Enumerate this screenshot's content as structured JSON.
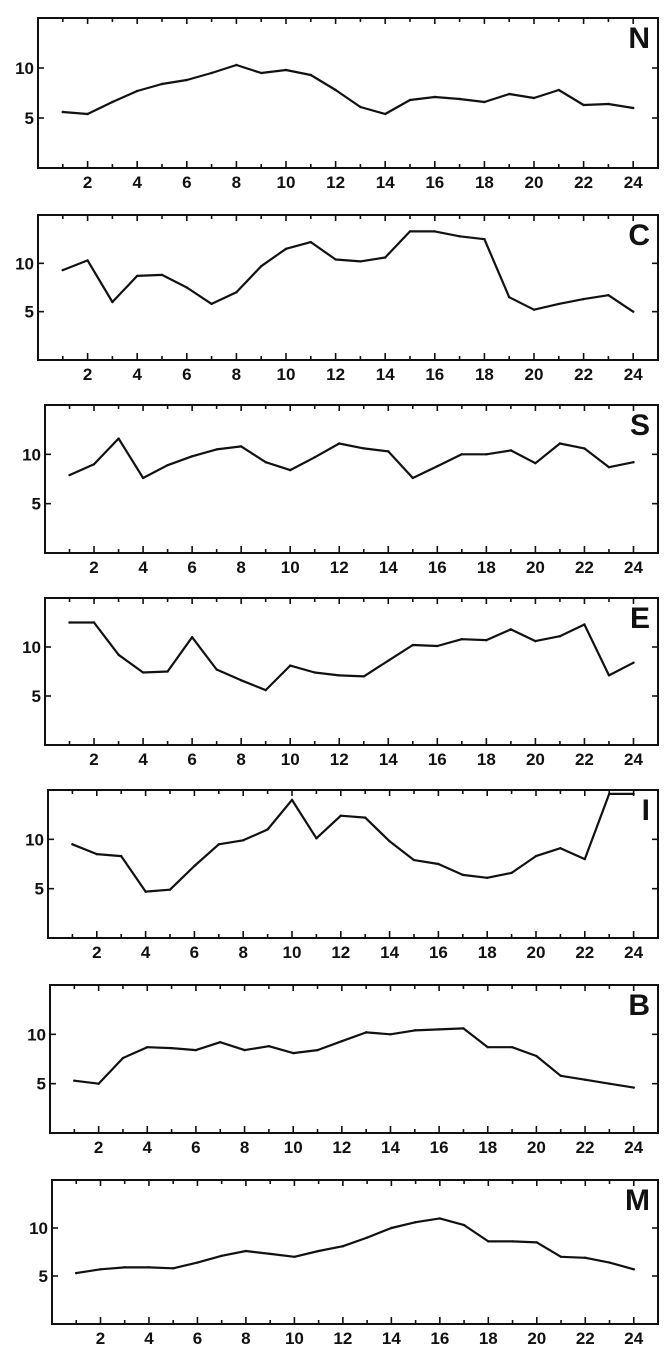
{
  "chart_data": [
    {
      "type": "line",
      "title": "N",
      "x": [
        1,
        2,
        3,
        4,
        5,
        6,
        7,
        8,
        9,
        10,
        11,
        12,
        13,
        14,
        15,
        16,
        17,
        18,
        19,
        20,
        21,
        22,
        23,
        24
      ],
      "series": [
        {
          "values": [
            5.6,
            5.4,
            6.6,
            7.7,
            8.4,
            8.8,
            9.5,
            10.3,
            9.5,
            9.8,
            9.3,
            7.8,
            6.1,
            5.4,
            6.8,
            7.1,
            6.9,
            6.6,
            7.4,
            7.0,
            7.8,
            6.3,
            6.4,
            6.0
          ]
        }
      ],
      "xticks": [
        2,
        4,
        6,
        8,
        10,
        12,
        14,
        16,
        18,
        20,
        22,
        24
      ],
      "yticks": [
        5,
        10
      ],
      "xlim": [
        0,
        25
      ],
      "ylim": [
        0,
        15
      ]
    },
    {
      "type": "line",
      "title": "C",
      "x": [
        1,
        2,
        3,
        4,
        5,
        6,
        7,
        8,
        9,
        10,
        11,
        12,
        13,
        14,
        15,
        16,
        17,
        18,
        19,
        20,
        21,
        22,
        23,
        24
      ],
      "series": [
        {
          "values": [
            9.3,
            10.3,
            6.0,
            8.7,
            8.8,
            7.5,
            5.8,
            7.0,
            9.7,
            11.5,
            12.2,
            10.4,
            10.2,
            10.6,
            13.3,
            13.3,
            12.8,
            12.5,
            6.5,
            5.2,
            5.8,
            6.3,
            6.7,
            5.0
          ]
        }
      ],
      "xticks": [
        2,
        4,
        6,
        8,
        10,
        12,
        14,
        16,
        18,
        20,
        22,
        24
      ],
      "yticks": [
        5,
        10
      ],
      "xlim": [
        0,
        25
      ],
      "ylim": [
        0,
        15
      ]
    },
    {
      "type": "line",
      "title": "S",
      "x": [
        1,
        2,
        3,
        4,
        5,
        6,
        7,
        8,
        9,
        10,
        11,
        12,
        13,
        14,
        15,
        16,
        17,
        18,
        19,
        20,
        21,
        22,
        23,
        24
      ],
      "series": [
        {
          "values": [
            7.9,
            9.0,
            11.6,
            7.6,
            8.9,
            9.8,
            10.5,
            10.8,
            9.2,
            8.4,
            9.7,
            11.1,
            10.6,
            10.3,
            7.6,
            8.8,
            10.0,
            10.0,
            10.4,
            9.1,
            11.1,
            10.6,
            8.7,
            9.2
          ]
        }
      ],
      "xticks": [
        2,
        4,
        6,
        8,
        10,
        12,
        14,
        16,
        18,
        20,
        22,
        24
      ],
      "yticks": [
        5,
        10
      ],
      "xlim": [
        0,
        25
      ],
      "ylim": [
        0,
        15
      ]
    },
    {
      "type": "line",
      "title": "E",
      "x": [
        1,
        2,
        3,
        4,
        5,
        6,
        7,
        8,
        9,
        10,
        11,
        12,
        13,
        14,
        15,
        16,
        17,
        18,
        19,
        20,
        21,
        22,
        23,
        24
      ],
      "series": [
        {
          "values": [
            12.5,
            12.5,
            9.2,
            7.4,
            7.5,
            11.0,
            7.7,
            6.6,
            5.6,
            8.1,
            7.4,
            7.1,
            7.0,
            8.6,
            10.2,
            10.1,
            10.8,
            10.7,
            11.8,
            10.6,
            11.1,
            12.3,
            7.1,
            8.4
          ]
        }
      ],
      "xticks": [
        2,
        4,
        6,
        8,
        10,
        12,
        14,
        16,
        18,
        20,
        22,
        24
      ],
      "yticks": [
        5,
        10
      ],
      "xlim": [
        0,
        25
      ],
      "ylim": [
        0,
        15
      ]
    },
    {
      "type": "line",
      "title": "I",
      "x": [
        1,
        2,
        3,
        4,
        5,
        6,
        7,
        8,
        9,
        10,
        11,
        12,
        13,
        14,
        15,
        16,
        17,
        18,
        19,
        20,
        21,
        22,
        23,
        24
      ],
      "series": [
        {
          "values": [
            9.5,
            8.5,
            8.3,
            4.7,
            4.9,
            7.3,
            9.5,
            9.9,
            11.0,
            14.0,
            10.1,
            12.4,
            12.2,
            9.8,
            7.9,
            7.5,
            6.4,
            6.1,
            6.6,
            8.3,
            9.1,
            8.0,
            14.6,
            14.6
          ]
        }
      ],
      "xticks": [
        2,
        4,
        6,
        8,
        10,
        12,
        14,
        16,
        18,
        20,
        22,
        24
      ],
      "yticks": [
        5,
        10
      ],
      "xlim": [
        0,
        25
      ],
      "ylim": [
        0,
        15
      ]
    },
    {
      "type": "line",
      "title": "B",
      "x": [
        1,
        2,
        3,
        4,
        5,
        6,
        7,
        8,
        9,
        10,
        11,
        12,
        13,
        14,
        15,
        16,
        17,
        18,
        19,
        20,
        21,
        22,
        23,
        24
      ],
      "series": [
        {
          "values": [
            5.3,
            5.0,
            7.6,
            8.7,
            8.6,
            8.4,
            9.2,
            8.4,
            8.8,
            8.1,
            8.4,
            9.3,
            10.2,
            10.0,
            10.4,
            10.5,
            10.6,
            8.7,
            8.7,
            7.8,
            5.8,
            5.4,
            5.0,
            4.6
          ]
        }
      ],
      "xticks": [
        2,
        4,
        6,
        8,
        10,
        12,
        14,
        16,
        18,
        20,
        22,
        24
      ],
      "yticks": [
        5,
        10
      ],
      "xlim": [
        0,
        25
      ],
      "ylim": [
        0,
        15
      ]
    },
    {
      "type": "line",
      "title": "M",
      "x": [
        1,
        2,
        3,
        4,
        5,
        6,
        7,
        8,
        9,
        10,
        11,
        12,
        13,
        14,
        15,
        16,
        17,
        18,
        19,
        20,
        21,
        22,
        23,
        24
      ],
      "series": [
        {
          "values": [
            5.3,
            5.7,
            5.9,
            5.9,
            5.8,
            6.4,
            7.1,
            7.6,
            7.3,
            7.0,
            7.6,
            8.1,
            9.0,
            10.0,
            10.6,
            11.0,
            10.3,
            8.6,
            8.6,
            8.5,
            7.0,
            6.9,
            6.4,
            5.7
          ]
        }
      ],
      "xticks": [
        2,
        4,
        6,
        8,
        10,
        12,
        14,
        16,
        18,
        20,
        22,
        24
      ],
      "yticks": [
        5,
        10
      ],
      "xlim": [
        0,
        25
      ],
      "ylim": [
        0,
        15
      ]
    }
  ]
}
